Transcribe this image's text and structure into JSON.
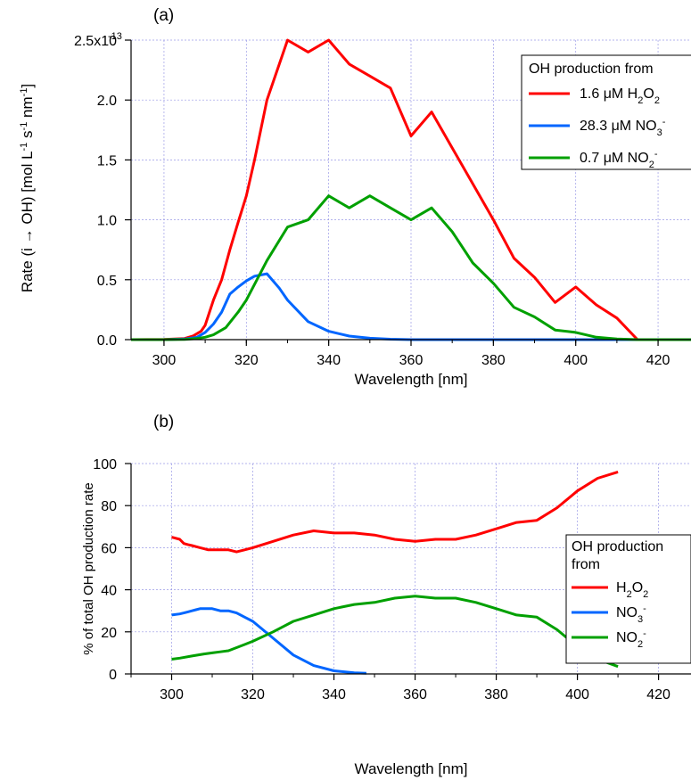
{
  "colors": {
    "h2o2": "#ff0000",
    "no3": "#0066ff",
    "no2": "#00a000"
  },
  "chart_data": [
    {
      "type": "line",
      "panel_label": "(a)",
      "title": "",
      "xlabel": "Wavelength [nm]",
      "ylabel": "Rate (i → OH) [mol L^-1 s^-1 nm^-1]",
      "ylabel_parts": [
        "Rate (i ",
        "→",
        " OH) [mol L",
        "-1",
        " s",
        "-1",
        " nm",
        "-1",
        "]"
      ],
      "xlim": [
        292,
        428
      ],
      "ylim": [
        0,
        2.5e-13
      ],
      "grid": true,
      "x_ticks": [
        "300",
        "320",
        "340",
        "360",
        "380",
        "400",
        "420"
      ],
      "y_ticks": [
        "0.0",
        "0.5",
        "1.0",
        "1.5",
        "2.0",
        "2.5x10"
      ],
      "y_ticks_values": [
        0,
        5e-14,
        1e-13,
        1.5e-13,
        2e-13,
        2.5e-13
      ],
      "y_top_exponent": "-13",
      "legend_title": "OH production from",
      "legend_placement": "top-right",
      "series": [
        {
          "name": "1.6 μM H2O2",
          "legend_parts": [
            "1.6 μM H",
            "2",
            "O",
            "2"
          ],
          "color_key": "h2o2",
          "x": [
            292,
            300,
            305,
            307,
            309,
            310,
            312,
            314,
            316,
            318,
            320,
            322,
            325,
            330,
            335,
            340,
            345,
            350,
            355,
            360,
            365,
            370,
            375,
            380,
            385,
            390,
            395,
            400,
            405,
            410,
            415,
            420,
            428
          ],
          "y": [
            0,
            2e-16,
            1e-15,
            3e-15,
            7e-15,
            1.2e-14,
            3.3e-14,
            5e-14,
            7.5e-14,
            9.8e-14,
            1.2e-13,
            1.5e-13,
            2e-13,
            2.5e-13,
            2.4e-13,
            2.5e-13,
            2.3e-13,
            2.2e-13,
            2.1e-13,
            1.7e-13,
            1.9e-13,
            1.6e-13,
            1.3e-13,
            1e-13,
            6.8e-14,
            5.2e-14,
            3.1e-14,
            4.4e-14,
            2.9e-14,
            1.8e-14,
            0,
            0,
            0
          ]
        },
        {
          "name": "28.3 μM NO3-",
          "legend_parts": [
            "28.3 μM NO",
            "3",
            "-"
          ],
          "color_key": "no3",
          "x": [
            292,
            300,
            305,
            308,
            310,
            312,
            314,
            316,
            318,
            320,
            322,
            325,
            328,
            330,
            335,
            340,
            345,
            350,
            355,
            360,
            380,
            400,
            428
          ],
          "y": [
            0,
            0,
            5e-16,
            2e-15,
            6e-15,
            1.3e-14,
            2.3e-14,
            3.8e-14,
            4.4e-14,
            4.9e-14,
            5.3e-14,
            5.5e-14,
            4.3e-14,
            3.3e-14,
            1.5e-14,
            7e-15,
            3e-15,
            1.2e-15,
            4e-16,
            0,
            0,
            0,
            0
          ]
        },
        {
          "name": "0.7 μM NO2-",
          "legend_parts": [
            "0.7 μM NO",
            "2",
            "-"
          ],
          "color_key": "no2",
          "x": [
            292,
            300,
            305,
            308,
            310,
            312,
            315,
            318,
            320,
            325,
            330,
            335,
            340,
            345,
            350,
            355,
            360,
            365,
            370,
            375,
            380,
            385,
            390,
            395,
            400,
            405,
            410,
            415,
            420,
            428
          ],
          "y": [
            0,
            0,
            2e-16,
            1e-15,
            2e-15,
            4e-15,
            1e-14,
            2.3e-14,
            3.3e-14,
            6.6e-14,
            9.4e-14,
            1e-13,
            1.2e-13,
            1.1e-13,
            1.2e-13,
            1.1e-13,
            1e-13,
            1.1e-13,
            9e-14,
            6.4e-14,
            4.7e-14,
            2.7e-14,
            1.9e-14,
            8e-15,
            6e-15,
            2e-15,
            5e-16,
            0,
            0,
            0
          ]
        }
      ]
    },
    {
      "type": "line",
      "panel_label": "(b)",
      "title": "",
      "xlabel": "Wavelength [nm]",
      "ylabel": "% of total OH production rate",
      "xlim": [
        290,
        428
      ],
      "ylim": [
        0,
        100
      ],
      "grid": true,
      "x_ticks": [
        "300",
        "320",
        "340",
        "360",
        "380",
        "400",
        "420"
      ],
      "y_ticks": [
        "0",
        "20",
        "40",
        "60",
        "80",
        "100"
      ],
      "legend_title_lines": [
        "OH production",
        "from"
      ],
      "legend_placement": "right",
      "series": [
        {
          "name": "H2O2",
          "legend_parts": [
            "H",
            "2",
            "O",
            "2"
          ],
          "color_key": "h2o2",
          "x": [
            300,
            302,
            303,
            304,
            305,
            306,
            307,
            308,
            309,
            310,
            312,
            314,
            316,
            318,
            320,
            325,
            330,
            335,
            340,
            345,
            350,
            355,
            360,
            365,
            370,
            375,
            380,
            385,
            390,
            395,
            400,
            405,
            410
          ],
          "y": [
            65,
            64,
            62,
            61.5,
            61,
            60.5,
            60,
            59.5,
            59,
            59,
            59,
            59,
            58,
            59,
            60,
            63,
            66,
            68,
            67,
            67,
            66,
            64,
            63,
            64,
            64,
            66,
            69,
            72,
            73,
            79,
            87,
            93,
            96
          ]
        },
        {
          "name": "NO3-",
          "legend_parts": [
            "NO",
            "3",
            "-"
          ],
          "color_key": "no3",
          "x": [
            300,
            302,
            303,
            304,
            305,
            306,
            307,
            308,
            309,
            310,
            312,
            314,
            316,
            318,
            320,
            325,
            330,
            335,
            340,
            345,
            348
          ],
          "y": [
            28,
            28.5,
            29,
            29.5,
            30,
            30.5,
            31,
            31,
            31,
            31,
            30,
            30,
            29,
            27,
            25,
            17,
            9,
            4,
            1.5,
            0.5,
            0.3
          ]
        },
        {
          "name": "NO2-",
          "legend_parts": [
            "NO",
            "2",
            "-"
          ],
          "color_key": "no2",
          "x": [
            300,
            302,
            305,
            308,
            310,
            312,
            314,
            316,
            318,
            320,
            325,
            330,
            335,
            340,
            345,
            350,
            355,
            360,
            365,
            370,
            375,
            380,
            385,
            390,
            395,
            400,
            405,
            410
          ],
          "y": [
            7,
            7.5,
            8.5,
            9.5,
            10,
            10.5,
            11,
            12.5,
            14,
            15.5,
            20,
            25,
            28,
            31,
            33,
            34,
            36,
            37,
            36,
            36,
            34,
            31,
            28,
            27,
            21,
            13,
            7,
            3.5
          ]
        }
      ]
    }
  ]
}
